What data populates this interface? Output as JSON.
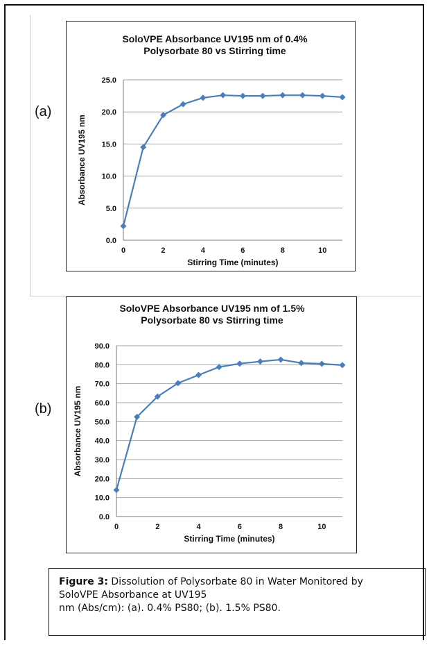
{
  "panel_labels": [
    "(a)",
    "(b)"
  ],
  "chart_data": [
    {
      "type": "line",
      "title": "SoloVPE Absorbance UV195 nm of 0.4% Polysorbate 80 vs Stirring time",
      "title_lines": [
        "SoloVPE Absorbance UV195 nm of 0.4%",
        "Polysorbate 80 vs Stirring time"
      ],
      "xlabel": "Stirring Time (minutes)",
      "ylabel": "Absorbance UV195 nm",
      "x": [
        0,
        1,
        2,
        3,
        4,
        5,
        6,
        7,
        8,
        9,
        10,
        11
      ],
      "series": [
        {
          "values": [
            2.2,
            14.5,
            19.5,
            21.2,
            22.2,
            22.6,
            22.5,
            22.5,
            22.6,
            22.6,
            22.5,
            22.3
          ],
          "color": "#4a7ebb",
          "marker": "diamond"
        }
      ],
      "xlim": [
        0,
        11
      ],
      "ylim": [
        0,
        25
      ],
      "xticks": [
        "0",
        "2",
        "4",
        "6",
        "8",
        "10"
      ],
      "yticks": [
        "0.0",
        "5.0",
        "10.0",
        "15.0",
        "20.0",
        "25.0"
      ],
      "grid": true
    },
    {
      "type": "line",
      "title": "SoloVPE Absorbance UV195 nm of 1.5% Polysorbate 80 vs Stirring time",
      "title_lines": [
        "SoloVPE Absorbance UV195 nm of 1.5%",
        "Polysorbate 80 vs Stirring time"
      ],
      "xlabel": "Stirring Time (minutes)",
      "ylabel": "Absorbance UV195 nm",
      "x": [
        0,
        1,
        2,
        3,
        4,
        5,
        6,
        7,
        8,
        9,
        10,
        11
      ],
      "series": [
        {
          "values": [
            14,
            52.5,
            63.2,
            70.3,
            74.6,
            78.8,
            80.6,
            81.7,
            82.7,
            80.9,
            80.5,
            79.8
          ],
          "color": "#4a7ebb",
          "marker": "diamond"
        }
      ],
      "xlim": [
        0,
        11
      ],
      "ylim": [
        0,
        90
      ],
      "xticks": [
        "0",
        "2",
        "4",
        "6",
        "8",
        "10"
      ],
      "yticks": [
        "0.0",
        "10.0",
        "20.0",
        "30.0",
        "40.0",
        "50.0",
        "60.0",
        "70.0",
        "80.0",
        "90.0"
      ],
      "grid": true
    }
  ],
  "caption": {
    "label": "Figure 3:",
    "line1": " Dissolution of Polysorbate 80 in Water Monitored by",
    "line2": "SoloVPE Absorbance at UV195",
    "line3": "nm (Abs/cm): (a). 0.4% PS80; (b). 1.5% PS80."
  }
}
